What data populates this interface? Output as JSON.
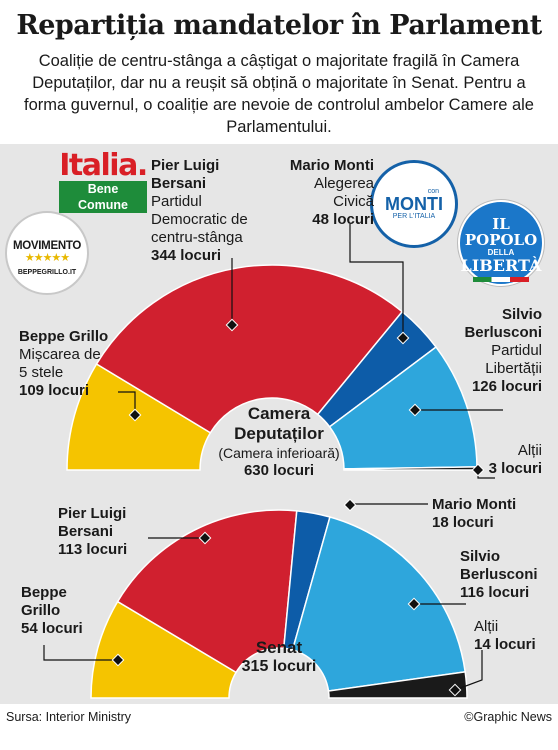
{
  "title": "Repartiția mandatelor în Parlament",
  "intro": "Coaliție de centru-stânga a câștigat o majoritate fragilă în Camera Deputaților, dar nu a reușit să obțină o majoritate în Senat. Pentru a forma guvernul, o coaliție are nevoie de controlul ambelor Camere ale Parlamentului.",
  "logos": {
    "italia": {
      "line1": "Italia.",
      "line2": "Bene Comune"
    },
    "m5s": {
      "line1": "MOVIMENTO",
      "stars": "★★★★★",
      "line2": "BEPPEGRILLO.IT"
    },
    "monti": {
      "line1": "con",
      "line2": "MONTI",
      "line3": "PER L'ITALIA"
    },
    "pdl": {
      "line1": "IL",
      "line2": "POPOLO",
      "line3": "DELLA",
      "line4": "LIBERTÀ"
    }
  },
  "chart_data": [
    {
      "type": "pie",
      "subtype": "semicircle-parliament",
      "title": "Camera Deputaților",
      "subtitle": "(Camera inferioară)",
      "total_label": "630 locuri",
      "total": 630,
      "slices": [
        {
          "leader": "Beppe Grillo",
          "party": "Mișcarea de 5 stele",
          "value": 109,
          "seats_label": "109 locuri",
          "color": "#f5c400"
        },
        {
          "leader": "Pier Luigi Bersani",
          "party": "Partidul Democratic de centru-stânga",
          "value": 344,
          "seats_label": "344 locuri",
          "color": "#d0202f"
        },
        {
          "leader": "Mario Monti",
          "party": "Alegerea Civică",
          "value": 48,
          "seats_label": "48 locuri",
          "color": "#0d5ca8"
        },
        {
          "leader": "Silvio Berlusconi",
          "party": "Partidul Libertății",
          "value": 126,
          "seats_label": "126 locuri",
          "color": "#2ea6dc"
        },
        {
          "leader": "",
          "party": "Alții",
          "value": 3,
          "seats_label": "3 locuri",
          "color": "#1a1a1a"
        }
      ]
    },
    {
      "type": "pie",
      "subtype": "semicircle-parliament",
      "title": "Senat",
      "total_label": "315 locuri",
      "total": 315,
      "slices": [
        {
          "leader": "Beppe Grillo",
          "value": 54,
          "seats_label": "54 locuri",
          "color": "#f5c400"
        },
        {
          "leader": "Pier Luigi Bersani",
          "value": 113,
          "seats_label": "113 locuri",
          "color": "#d0202f"
        },
        {
          "leader": "Mario Monti",
          "value": 18,
          "seats_label": "18 locuri",
          "color": "#0d5ca8"
        },
        {
          "leader": "Silvio Berlusconi",
          "value": 116,
          "seats_label": "116 locuri",
          "color": "#2ea6dc"
        },
        {
          "leader": "",
          "party": "Alții",
          "value": 14,
          "seats_label": "14 locuri",
          "color": "#1a1a1a"
        }
      ]
    }
  ],
  "source": "Sursa: Interior Ministry",
  "credit": "©Graphic News"
}
